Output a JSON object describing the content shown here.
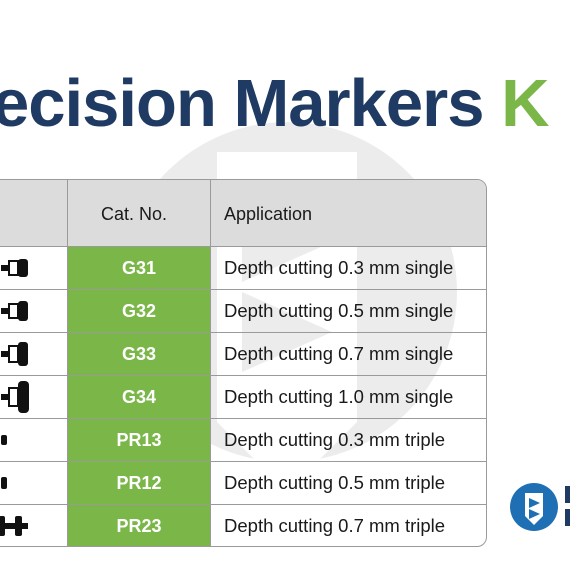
{
  "title": {
    "main": "ecision Markers ",
    "accent": "K"
  },
  "table": {
    "headers": [
      "",
      "Cat. No.",
      "Application"
    ],
    "rows": [
      {
        "cat": "G31",
        "application": "Depth cutting 0.3 mm single",
        "tool_icon": "single-marker-bur-icon"
      },
      {
        "cat": "G32",
        "application": "Depth cutting 0.5 mm single",
        "tool_icon": "single-marker-bur-icon"
      },
      {
        "cat": "G33",
        "application": "Depth cutting 0.7 mm single",
        "tool_icon": "single-marker-bur-icon"
      },
      {
        "cat": "G34",
        "application": "Depth cutting 1.0 mm single",
        "tool_icon": "single-marker-bur-icon"
      },
      {
        "cat": "PR13",
        "application": "Depth cutting 0.3 mm triple",
        "tool_icon": "triple-marker-bur-icon"
      },
      {
        "cat": "PR12",
        "application": "Depth cutting 0.5 mm triple",
        "tool_icon": "triple-marker-bur-icon"
      },
      {
        "cat": "PR23",
        "application": "Depth cutting 0.7 mm triple",
        "tool_icon": "triple-marker-bur-icon"
      }
    ]
  },
  "colors": {
    "title": "#1f3a63",
    "accent": "#7ab648",
    "header_bg": "#dcdcdc",
    "cat_bg": "#7ab648",
    "logo": "#1f6fb4"
  }
}
